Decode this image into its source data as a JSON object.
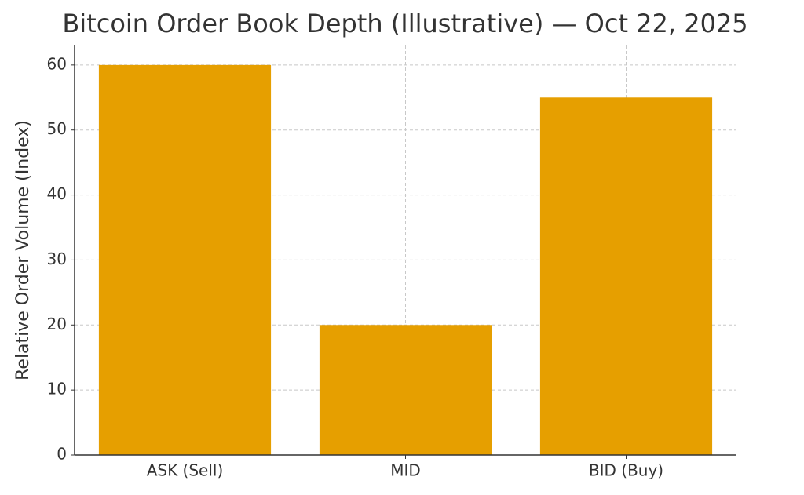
{
  "chart_data": {
    "type": "bar",
    "title": "Bitcoin Order Book Depth (Illustrative) — Oct 22, 2025",
    "y_label": "Relative Order Volume (Index)",
    "categories": [
      "ASK (Sell)",
      "MID",
      "BID (Buy)"
    ],
    "values": [
      60,
      20,
      55
    ],
    "color": "#e69f00",
    "ylim": [
      0,
      63
    ],
    "yticks": [
      0,
      10,
      20,
      30,
      40,
      50,
      60
    ],
    "grid": true
  }
}
